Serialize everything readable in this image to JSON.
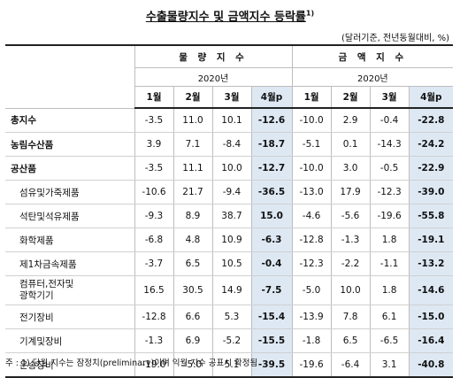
{
  "title": "수출물량지수 및 금액지수 등락률",
  "title_note": "1)",
  "unit": "(달러기준, 전년동월대비, %)",
  "groups": [
    "물 량 지 수",
    "금 액 지 수"
  ],
  "year": "2020년",
  "months": [
    "1월",
    "2월",
    "3월",
    "4월p",
    "1월",
    "2월",
    "3월",
    "4월p"
  ],
  "rows": [
    {
      "label": "총지수",
      "values": [
        "-3.5",
        "11.0",
        "10.1",
        "-12.6",
        "-10.0",
        "2.9",
        "-0.4",
        "-22.8"
      ]
    },
    {
      "label": "농림수산품",
      "values": [
        "3.9",
        "7.1",
        "-8.4",
        "-18.7",
        "-5.1",
        "0.1",
        "-14.3",
        "-24.2"
      ]
    },
    {
      "label": "공산품",
      "values": [
        "-3.5",
        "11.1",
        "10.0",
        "-12.7",
        "-10.0",
        "3.0",
        "-0.5",
        "-22.9"
      ]
    },
    {
      "label": "섬유및가죽제품",
      "values": [
        "-10.6",
        "21.7",
        "-9.4",
        "-36.5",
        "-13.0",
        "17.9",
        "-12.3",
        "-39.0"
      ]
    },
    {
      "label": "석탄및석유제품",
      "values": [
        "-9.3",
        "8.9",
        "38.7",
        "15.0",
        "-4.6",
        "-5.6",
        "-19.6",
        "-55.8"
      ]
    },
    {
      "label": "화학제품",
      "values": [
        "-6.8",
        "4.8",
        "10.9",
        "-6.3",
        "-12.8",
        "-1.3",
        "1.8",
        "-19.1"
      ]
    },
    {
      "label": "제1차금속제품",
      "values": [
        "-3.7",
        "6.5",
        "10.5",
        "-0.4",
        "-12.3",
        "-2.2",
        "-1.1",
        "-13.2"
      ]
    },
    {
      "label_line1": "컴퓨터,전자및",
      "label_line2": "광학기기",
      "values": [
        "16.5",
        "30.5",
        "14.9",
        "-7.5",
        "-5.0",
        "10.0",
        "1.8",
        "-14.6"
      ]
    },
    {
      "label": "전기장비",
      "values": [
        "-12.8",
        "6.6",
        "5.3",
        "-15.4",
        "-13.9",
        "7.8",
        "6.1",
        "-15.0"
      ]
    },
    {
      "label": "기계및장비",
      "values": [
        "-1.3",
        "6.9",
        "-5.2",
        "-15.5",
        "-1.8",
        "6.5",
        "-6.5",
        "-16.4"
      ]
    },
    {
      "label": "운송장비",
      "values": [
        "-19.0",
        "-5.0",
        "5.1",
        "-39.5",
        "-19.6",
        "-6.4",
        "3.1",
        "-40.8"
      ]
    }
  ],
  "note": "주 : 1) 당월 지수는 잠정치(preliminary)이며 익월 지수 공표시 확정됨"
}
